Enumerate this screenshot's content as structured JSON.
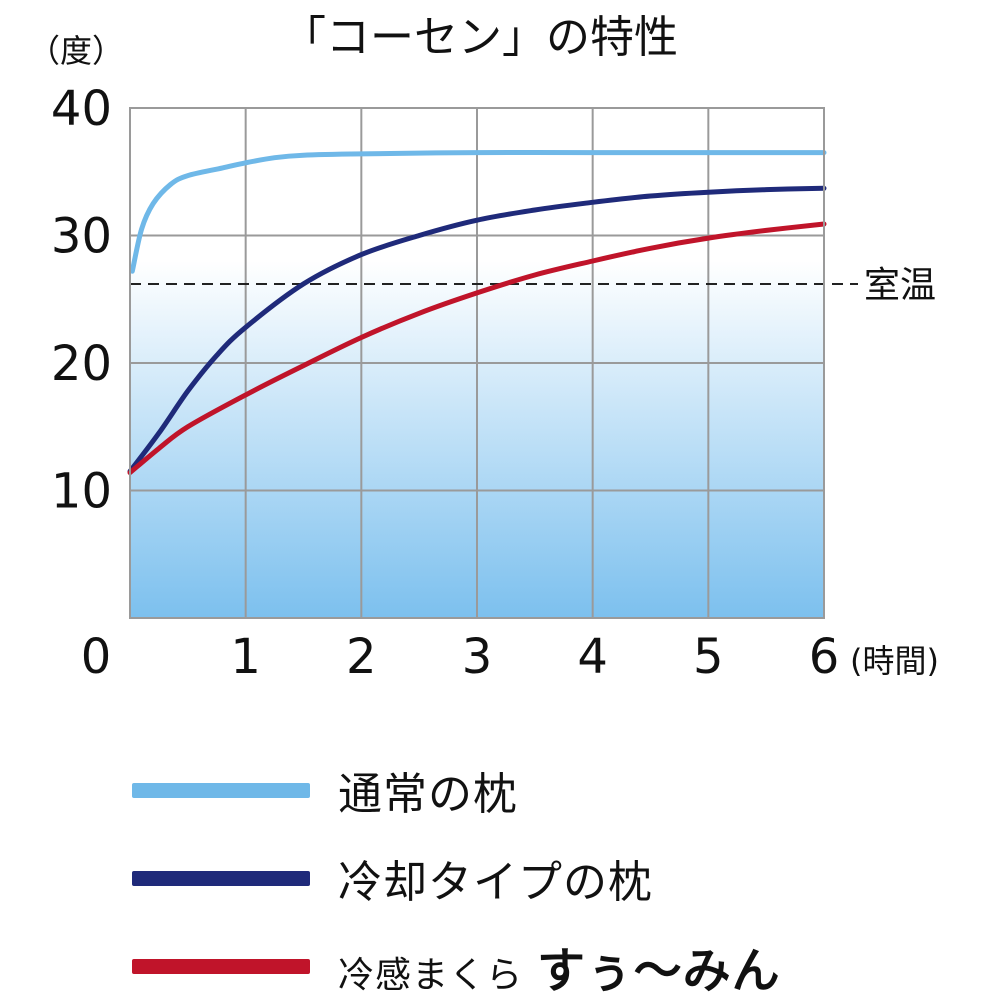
{
  "colors": {
    "normal": "#6fb8e8",
    "cooling": "#1f2a7a",
    "kosen": "#c0142a",
    "grid": "#9a9a9a",
    "bg_top": "#ffffff",
    "bg_bottom": "#7cc0ee",
    "room_line": "#222222"
  },
  "chart_data": {
    "type": "line",
    "title": "「コーセン」の特性",
    "ylabel": "（度）",
    "xlabel": "(時間)",
    "xlim": [
      0,
      6
    ],
    "ylim": [
      0,
      40
    ],
    "x_ticks": [
      "0",
      "1",
      "2",
      "3",
      "4",
      "5",
      "6"
    ],
    "y_ticks": [
      "10",
      "20",
      "30",
      "40"
    ],
    "grid": true,
    "room_temperature": {
      "label": "室温",
      "value": 26.2
    },
    "series": [
      {
        "name": "通常の枕",
        "color_key": "normal",
        "points": [
          [
            0.02,
            27.2
          ],
          [
            0.1,
            30.5
          ],
          [
            0.2,
            32.5
          ],
          [
            0.35,
            34.0
          ],
          [
            0.5,
            34.7
          ],
          [
            0.8,
            35.3
          ],
          [
            1.0,
            35.7
          ],
          [
            1.25,
            36.1
          ],
          [
            1.5,
            36.3
          ],
          [
            2.0,
            36.4
          ],
          [
            3.0,
            36.5
          ],
          [
            4.0,
            36.5
          ],
          [
            5.0,
            36.5
          ],
          [
            6.0,
            36.5
          ]
        ]
      },
      {
        "name": "冷却タイプの枕",
        "color_key": "cooling",
        "points": [
          [
            0.0,
            11.5
          ],
          [
            0.25,
            14.5
          ],
          [
            0.5,
            17.8
          ],
          [
            0.75,
            20.6
          ],
          [
            1.0,
            22.8
          ],
          [
            1.5,
            26.2
          ],
          [
            2.0,
            28.5
          ],
          [
            2.5,
            30.0
          ],
          [
            3.0,
            31.2
          ],
          [
            3.5,
            32.0
          ],
          [
            4.0,
            32.6
          ],
          [
            4.5,
            33.1
          ],
          [
            5.0,
            33.4
          ],
          [
            5.5,
            33.6
          ],
          [
            6.0,
            33.7
          ]
        ]
      },
      {
        "name": "冷感まくら すぅ〜みん",
        "color_key": "kosen",
        "points": [
          [
            0.0,
            11.4
          ],
          [
            0.25,
            13.3
          ],
          [
            0.5,
            15.0
          ],
          [
            1.0,
            17.5
          ],
          [
            1.5,
            19.8
          ],
          [
            2.0,
            22.0
          ],
          [
            2.5,
            23.9
          ],
          [
            3.0,
            25.5
          ],
          [
            3.5,
            26.9
          ],
          [
            4.0,
            28.0
          ],
          [
            4.5,
            29.0
          ],
          [
            5.0,
            29.8
          ],
          [
            5.5,
            30.4
          ],
          [
            6.0,
            30.9
          ]
        ]
      }
    ]
  },
  "legend": {
    "normal_label": "通常の枕",
    "cooling_label": "冷却タイプの枕",
    "kosen_label_small": "冷感まくら",
    "kosen_label_big": "すぅ〜みん"
  }
}
